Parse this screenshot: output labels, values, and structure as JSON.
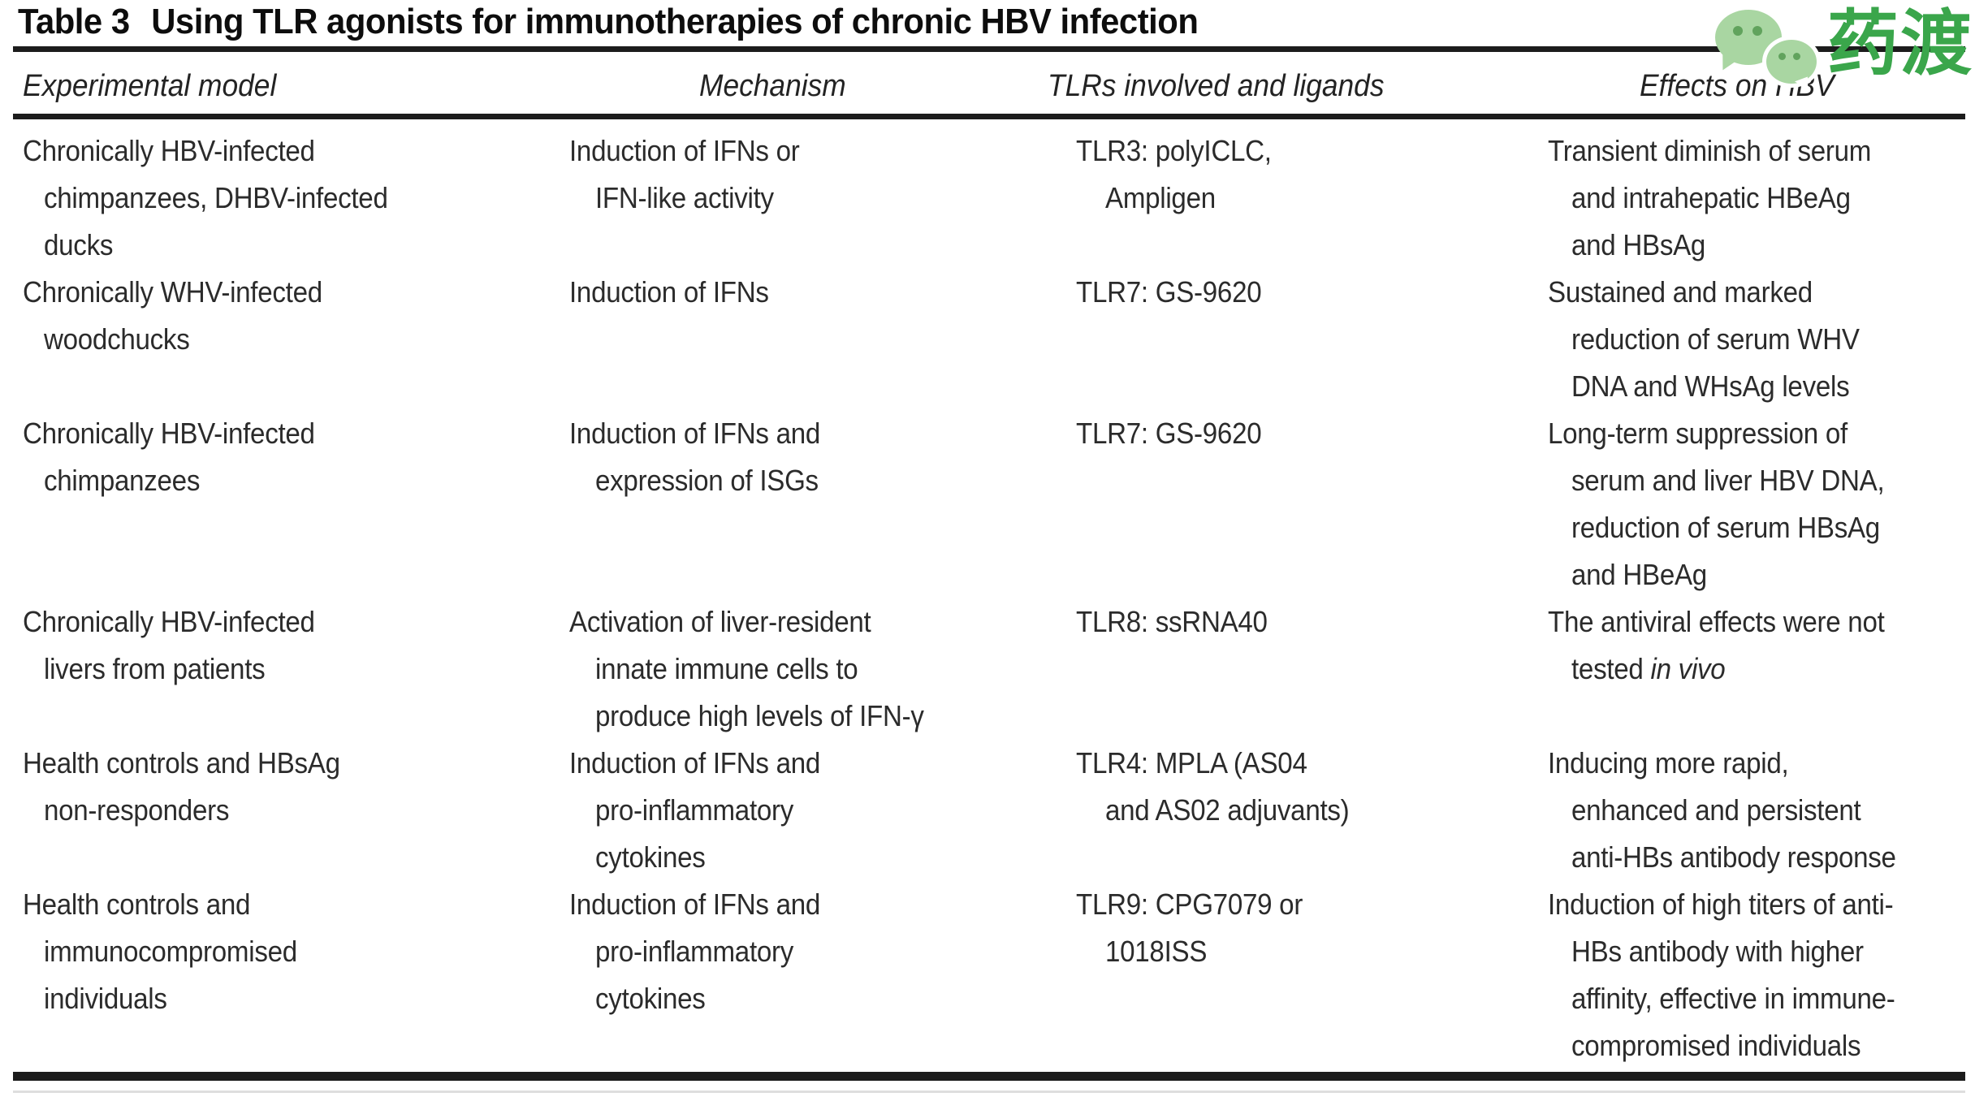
{
  "header": {
    "table_label": "Table 3",
    "title": "Using TLR agonists for immunotherapies of chronic HBV infection"
  },
  "logo": {
    "text": "药渡",
    "bubble_color": "#a9d6a2",
    "dot_color": "#61a35d",
    "text_color": "#3aa64b"
  },
  "table": {
    "columns": [
      "Experimental model",
      "Mechanism",
      "TLRs involved and ligands",
      "Effects on HBV"
    ],
    "rows": [
      {
        "cells": [
          [
            "Chronically HBV-infected",
            "chimpanzees, DHBV-infected",
            "ducks"
          ],
          [
            "Induction of IFNs or",
            "IFN-like activity"
          ],
          [
            "TLR3: polyICLC,",
            "Ampligen"
          ],
          [
            "Transient diminish of serum",
            "and intrahepatic HBeAg",
            "and HBsAg"
          ]
        ]
      },
      {
        "cells": [
          [
            "Chronically WHV-infected",
            "woodchucks"
          ],
          [
            "Induction of IFNs"
          ],
          [
            "TLR7: GS-9620"
          ],
          [
            "Sustained and marked",
            "reduction of serum WHV",
            "DNA and WHsAg levels"
          ]
        ]
      },
      {
        "cells": [
          [
            "Chronically HBV-infected",
            "chimpanzees"
          ],
          [
            "Induction of IFNs and",
            "expression of ISGs"
          ],
          [
            "TLR7: GS-9620"
          ],
          [
            "Long-term suppression of",
            "serum and liver HBV DNA,",
            "reduction of serum HBsAg",
            "and HBeAg"
          ]
        ]
      },
      {
        "cells": [
          [
            "Chronically HBV-infected",
            "livers from patients"
          ],
          [
            "Activation of liver-resident",
            "innate immune cells to",
            "produce high levels of IFN-γ"
          ],
          [
            "TLR8: ssRNA40"
          ],
          [
            "The antiviral effects were not",
            "tested *in vivo*"
          ]
        ]
      },
      {
        "cells": [
          [
            "Health controls and HBsAg",
            "non-responders"
          ],
          [
            "Induction of IFNs and",
            "pro-inflammatory",
            "cytokines"
          ],
          [
            "TLR4: MPLA (AS04",
            "and AS02 adjuvants)"
          ],
          [
            "Inducing more rapid,",
            "enhanced and persistent",
            "anti-HBs antibody response"
          ]
        ]
      },
      {
        "cells": [
          [
            "Health controls and",
            "immunocompromised",
            "individuals"
          ],
          [
            "Induction of IFNs and",
            "pro-inflammatory",
            "cytokines"
          ],
          [
            "TLR9: CPG7079 or",
            "1018ISS"
          ],
          [
            "Induction of high titers of anti-",
            "HBs antibody with higher",
            "affinity, effective in immune-",
            "compromised individuals"
          ]
        ]
      }
    ]
  }
}
